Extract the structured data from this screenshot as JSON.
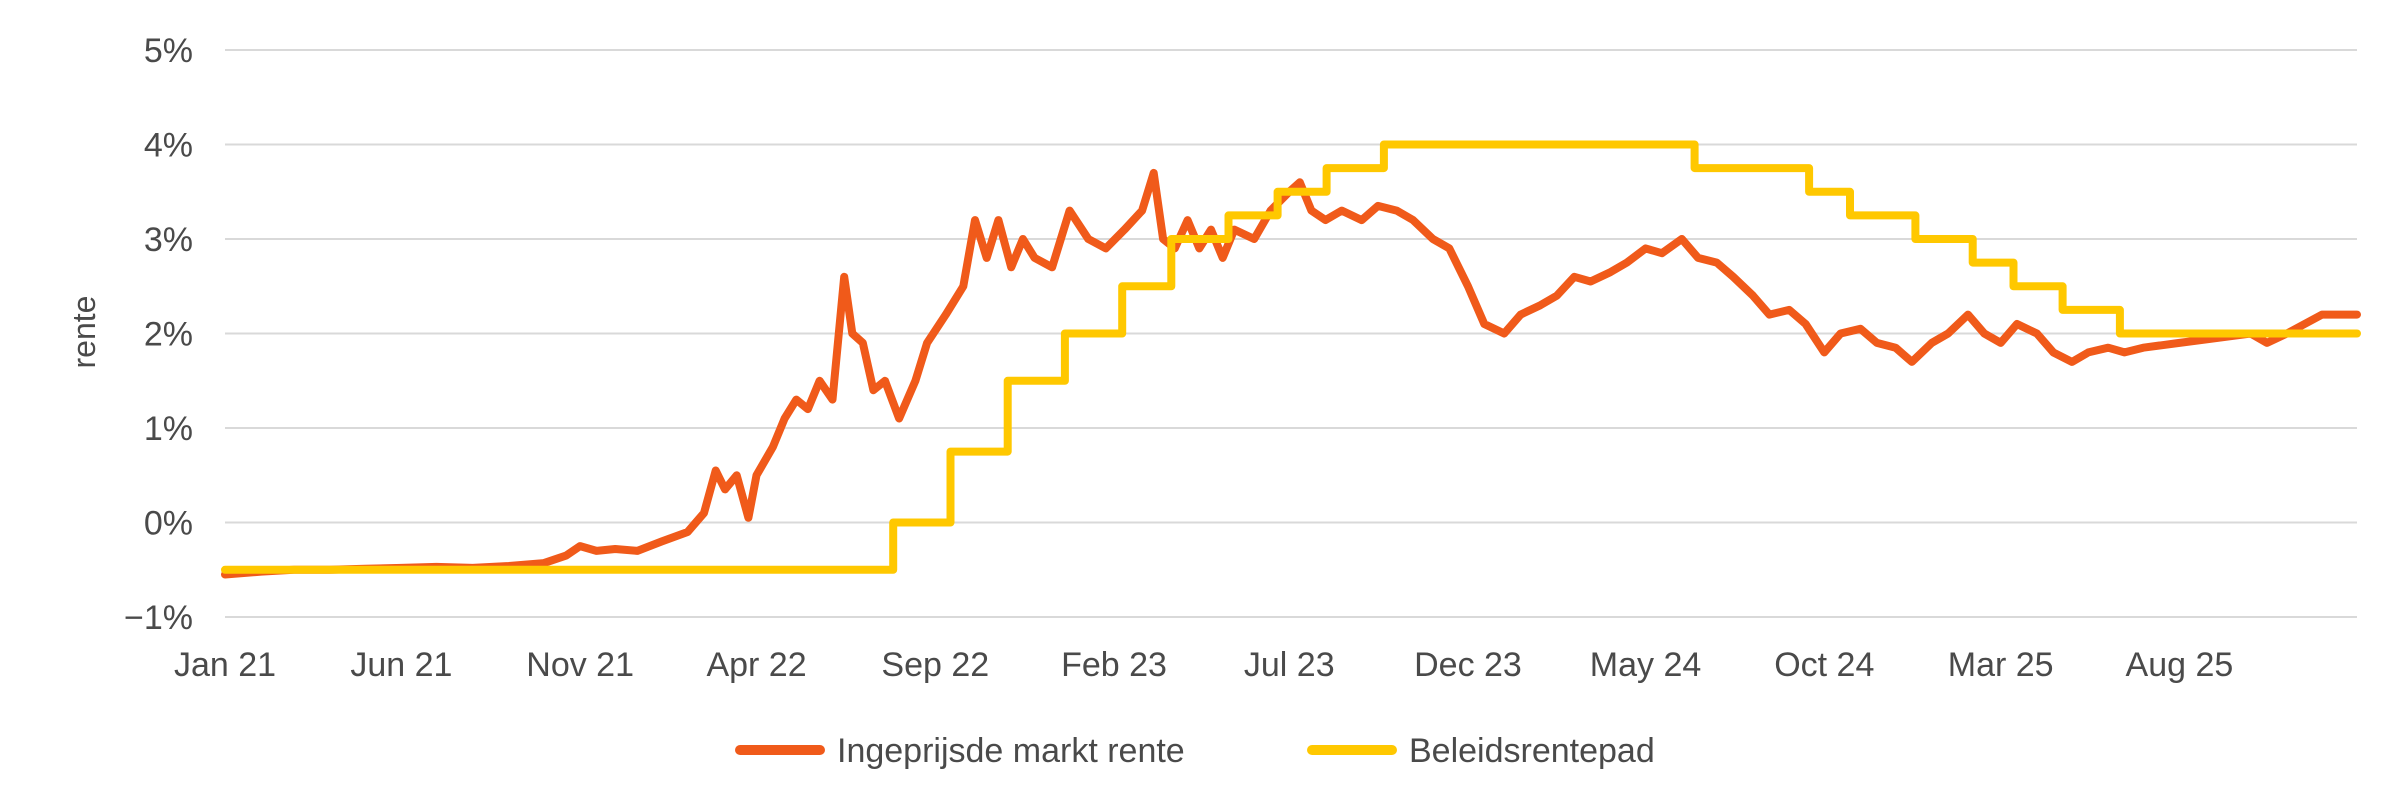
{
  "chart_data": {
    "type": "line",
    "title": "",
    "xlabel": "",
    "ylabel": "rente",
    "ylim": [
      -1,
      5
    ],
    "y_ticks": [
      {
        "value": -1,
        "label": "−1%"
      },
      {
        "value": 0,
        "label": "0%"
      },
      {
        "value": 1,
        "label": "1%"
      },
      {
        "value": 2,
        "label": "2%"
      },
      {
        "value": 3,
        "label": "3%"
      },
      {
        "value": 4,
        "label": "4%"
      },
      {
        "value": 5,
        "label": "5%"
      }
    ],
    "x_range": [
      "2021-01-01",
      "2025-12-31"
    ],
    "x_ticks": [
      {
        "date": "2021-01-01",
        "label": "Jan 21"
      },
      {
        "date": "2021-06-01",
        "label": "Jun 21"
      },
      {
        "date": "2021-11-01",
        "label": "Nov 21"
      },
      {
        "date": "2022-04-01",
        "label": "Apr 22"
      },
      {
        "date": "2022-09-01",
        "label": "Sep 22"
      },
      {
        "date": "2023-02-01",
        "label": "Feb 23"
      },
      {
        "date": "2023-07-01",
        "label": "Jul 23"
      },
      {
        "date": "2023-12-01",
        "label": "Dec 23"
      },
      {
        "date": "2024-05-01",
        "label": "May 24"
      },
      {
        "date": "2024-10-01",
        "label": "Oct 24"
      },
      {
        "date": "2025-03-01",
        "label": "Mar 25"
      },
      {
        "date": "2025-08-01",
        "label": "Aug 25"
      }
    ],
    "grid": "horizontal",
    "legend_position": "bottom",
    "series": [
      {
        "name": "Ingeprijsde markt rente",
        "color": "#f05a1a",
        "step": false,
        "points": [
          [
            "2021-01-01",
            -0.55
          ],
          [
            "2021-02-01",
            -0.52
          ],
          [
            "2021-03-01",
            -0.5
          ],
          [
            "2021-04-01",
            -0.5
          ],
          [
            "2021-05-01",
            -0.49
          ],
          [
            "2021-06-01",
            -0.48
          ],
          [
            "2021-07-01",
            -0.47
          ],
          [
            "2021-08-01",
            -0.48
          ],
          [
            "2021-09-01",
            -0.46
          ],
          [
            "2021-10-01",
            -0.43
          ],
          [
            "2021-10-20",
            -0.35
          ],
          [
            "2021-11-01",
            -0.25
          ],
          [
            "2021-11-15",
            -0.3
          ],
          [
            "2021-12-01",
            -0.28
          ],
          [
            "2021-12-20",
            -0.3
          ],
          [
            "2022-01-10",
            -0.2
          ],
          [
            "2022-02-01",
            -0.1
          ],
          [
            "2022-02-15",
            0.1
          ],
          [
            "2022-02-25",
            0.55
          ],
          [
            "2022-03-05",
            0.35
          ],
          [
            "2022-03-15",
            0.5
          ],
          [
            "2022-03-25",
            0.05
          ],
          [
            "2022-04-01",
            0.5
          ],
          [
            "2022-04-15",
            0.8
          ],
          [
            "2022-04-25",
            1.1
          ],
          [
            "2022-05-05",
            1.3
          ],
          [
            "2022-05-15",
            1.2
          ],
          [
            "2022-05-25",
            1.5
          ],
          [
            "2022-06-05",
            1.3
          ],
          [
            "2022-06-15",
            2.6
          ],
          [
            "2022-06-22",
            2.0
          ],
          [
            "2022-07-01",
            1.9
          ],
          [
            "2022-07-10",
            1.4
          ],
          [
            "2022-07-20",
            1.5
          ],
          [
            "2022-08-01",
            1.1
          ],
          [
            "2022-08-15",
            1.5
          ],
          [
            "2022-08-25",
            1.9
          ],
          [
            "2022-09-10",
            2.2
          ],
          [
            "2022-09-25",
            2.5
          ],
          [
            "2022-10-05",
            3.2
          ],
          [
            "2022-10-15",
            2.8
          ],
          [
            "2022-10-25",
            3.2
          ],
          [
            "2022-11-05",
            2.7
          ],
          [
            "2022-11-15",
            3.0
          ],
          [
            "2022-11-25",
            2.8
          ],
          [
            "2022-12-10",
            2.7
          ],
          [
            "2022-12-25",
            3.3
          ],
          [
            "2023-01-10",
            3.0
          ],
          [
            "2023-01-25",
            2.9
          ],
          [
            "2023-02-10",
            3.1
          ],
          [
            "2023-02-25",
            3.3
          ],
          [
            "2023-03-07",
            3.7
          ],
          [
            "2023-03-15",
            3.0
          ],
          [
            "2023-03-25",
            2.9
          ],
          [
            "2023-04-05",
            3.2
          ],
          [
            "2023-04-15",
            2.9
          ],
          [
            "2023-04-25",
            3.1
          ],
          [
            "2023-05-05",
            2.8
          ],
          [
            "2023-05-15",
            3.1
          ],
          [
            "2023-06-01",
            3.0
          ],
          [
            "2023-06-15",
            3.3
          ],
          [
            "2023-07-01",
            3.5
          ],
          [
            "2023-07-10",
            3.6
          ],
          [
            "2023-07-20",
            3.3
          ],
          [
            "2023-08-01",
            3.2
          ],
          [
            "2023-08-15",
            3.3
          ],
          [
            "2023-09-01",
            3.2
          ],
          [
            "2023-09-15",
            3.35
          ],
          [
            "2023-10-01",
            3.3
          ],
          [
            "2023-10-15",
            3.2
          ],
          [
            "2023-11-01",
            3.0
          ],
          [
            "2023-11-15",
            2.9
          ],
          [
            "2023-12-01",
            2.5
          ],
          [
            "2023-12-15",
            2.1
          ],
          [
            "2024-01-01",
            2.0
          ],
          [
            "2024-01-15",
            2.2
          ],
          [
            "2024-02-01",
            2.3
          ],
          [
            "2024-02-15",
            2.4
          ],
          [
            "2024-03-01",
            2.6
          ],
          [
            "2024-03-15",
            2.55
          ],
          [
            "2024-04-01",
            2.65
          ],
          [
            "2024-04-15",
            2.75
          ],
          [
            "2024-05-01",
            2.9
          ],
          [
            "2024-05-15",
            2.85
          ],
          [
            "2024-06-01",
            3.0
          ],
          [
            "2024-06-15",
            2.8
          ],
          [
            "2024-07-01",
            2.75
          ],
          [
            "2024-07-15",
            2.6
          ],
          [
            "2024-08-01",
            2.4
          ],
          [
            "2024-08-15",
            2.2
          ],
          [
            "2024-09-01",
            2.25
          ],
          [
            "2024-09-15",
            2.1
          ],
          [
            "2024-10-01",
            1.8
          ],
          [
            "2024-10-15",
            2.0
          ],
          [
            "2024-11-01",
            2.05
          ],
          [
            "2024-11-15",
            1.9
          ],
          [
            "2024-12-01",
            1.85
          ],
          [
            "2024-12-15",
            1.7
          ],
          [
            "2025-01-01",
            1.9
          ],
          [
            "2025-01-15",
            2.0
          ],
          [
            "2025-02-01",
            2.2
          ],
          [
            "2025-02-15",
            2.0
          ],
          [
            "2025-03-01",
            1.9
          ],
          [
            "2025-03-15",
            2.1
          ],
          [
            "2025-04-01",
            2.0
          ],
          [
            "2025-04-15",
            1.8
          ],
          [
            "2025-05-01",
            1.7
          ],
          [
            "2025-05-15",
            1.8
          ],
          [
            "2025-06-01",
            1.85
          ],
          [
            "2025-06-15",
            1.8
          ],
          [
            "2025-07-01",
            1.85
          ],
          [
            "2025-08-01",
            1.9
          ],
          [
            "2025-09-01",
            1.95
          ],
          [
            "2025-10-01",
            2.0
          ],
          [
            "2025-10-15",
            1.9
          ],
          [
            "2025-11-01",
            2.0
          ],
          [
            "2025-12-01",
            2.2
          ],
          [
            "2025-12-31",
            2.2
          ]
        ]
      },
      {
        "name": "Beleidsrentepad",
        "color": "#ffc800",
        "step": true,
        "points": [
          [
            "2021-01-01",
            -0.5
          ],
          [
            "2022-07-27",
            0.0
          ],
          [
            "2022-09-14",
            0.75
          ],
          [
            "2022-11-02",
            1.5
          ],
          [
            "2022-12-21",
            2.0
          ],
          [
            "2023-02-08",
            2.5
          ],
          [
            "2023-03-22",
            3.0
          ],
          [
            "2023-05-10",
            3.25
          ],
          [
            "2023-06-21",
            3.5
          ],
          [
            "2023-08-02",
            3.75
          ],
          [
            "2023-09-20",
            4.0
          ],
          [
            "2024-06-12",
            3.75
          ],
          [
            "2024-09-18",
            3.5
          ],
          [
            "2024-10-23",
            3.25
          ],
          [
            "2024-12-18",
            3.0
          ],
          [
            "2025-02-05",
            2.75
          ],
          [
            "2025-03-12",
            2.5
          ],
          [
            "2025-04-23",
            2.25
          ],
          [
            "2025-06-11",
            2.0
          ],
          [
            "2025-12-31",
            2.0
          ]
        ]
      }
    ]
  }
}
